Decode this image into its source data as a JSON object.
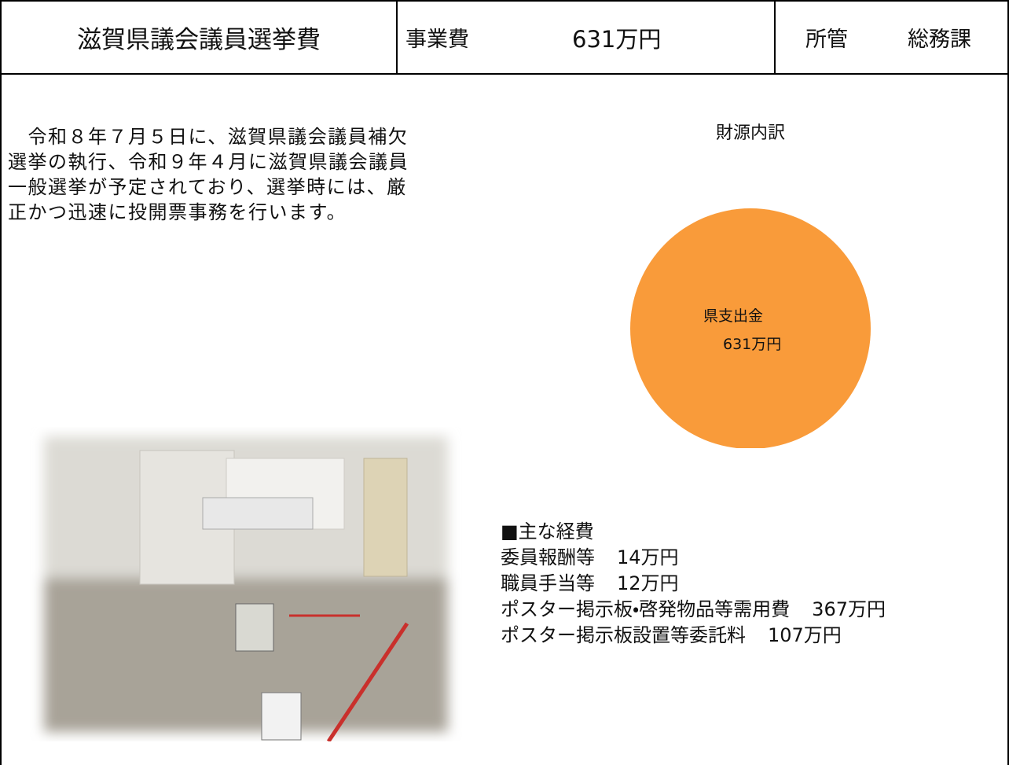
{
  "header": {
    "title": "滋賀県議会議員選挙費",
    "cost_label": "事業費",
    "cost": "631万円",
    "dept_label": "所管",
    "dept": "総務課"
  },
  "description": {
    "lines": [
      "　令和８年７月５日に、滋賀県議会議員補欠",
      "選挙の執行、令和９年４月に滋賀県議会議員",
      "一般選挙が予定されており、選挙時には、厳",
      "正かつ迅速に投開票事務を行います。"
    ]
  },
  "chart_data": {
    "type": "pie",
    "title": "財源内訳",
    "categories": [
      "県支出金"
    ],
    "values": [
      631
    ],
    "value_labels": [
      "631万円"
    ],
    "colors": [
      "#f99b3a"
    ]
  },
  "expenses": {
    "heading": "■主な経費",
    "items": [
      {
        "name": "委員報酬等",
        "amount": "14万円"
      },
      {
        "name": "職員手当等",
        "amount": "12万円"
      },
      {
        "name": "ポスター掲示板・啓発物品等需用費",
        "amount": "367万円"
      },
      {
        "name": "ポスター掲示板設置等委託料",
        "amount": "107万円"
      }
    ]
  }
}
